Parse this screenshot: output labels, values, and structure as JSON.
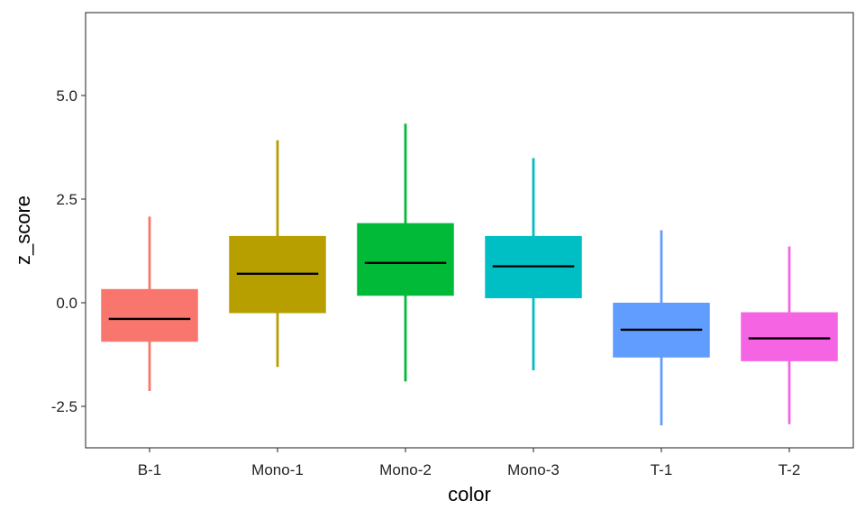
{
  "chart_data": {
    "type": "boxplot",
    "xlabel": "color",
    "ylabel": "z_score",
    "ylim": [
      -3.5,
      7.0
    ],
    "y_ticks": [
      -2.5,
      0.0,
      2.5,
      5.0
    ],
    "y_tick_labels": [
      "-2.5",
      "0.0",
      "2.5",
      "5.0"
    ],
    "grid": false,
    "legend": "none",
    "categories": [
      "B-1",
      "Mono-1",
      "Mono-2",
      "Mono-3",
      "T-1",
      "T-2"
    ],
    "boxes": [
      {
        "category": "B-1",
        "color": "#F8766D",
        "whisker_low": -2.13,
        "q1": -0.93,
        "median": -0.39,
        "q3": 0.32,
        "whisker_high": 2.08
      },
      {
        "category": "Mono-1",
        "color": "#B79F00",
        "whisker_low": -1.55,
        "q1": -0.24,
        "median": 0.7,
        "q3": 1.6,
        "whisker_high": 3.92
      },
      {
        "category": "Mono-2",
        "color": "#00BA38",
        "whisker_low": -1.9,
        "q1": 0.18,
        "median": 0.96,
        "q3": 1.91,
        "whisker_high": 4.32
      },
      {
        "category": "Mono-3",
        "color": "#00BFC4",
        "whisker_low": -1.63,
        "q1": 0.12,
        "median": 0.88,
        "q3": 1.6,
        "whisker_high": 3.49
      },
      {
        "category": "T-1",
        "color": "#619CFF",
        "whisker_low": -2.96,
        "q1": -1.31,
        "median": -0.65,
        "q3": -0.01,
        "whisker_high": 1.75
      },
      {
        "category": "T-2",
        "color": "#F564E3",
        "whisker_low": -2.93,
        "q1": -1.4,
        "median": -0.86,
        "q3": -0.24,
        "whisker_high": 1.36
      }
    ],
    "median_color": "#000000",
    "panel_border_color": "#333333"
  }
}
